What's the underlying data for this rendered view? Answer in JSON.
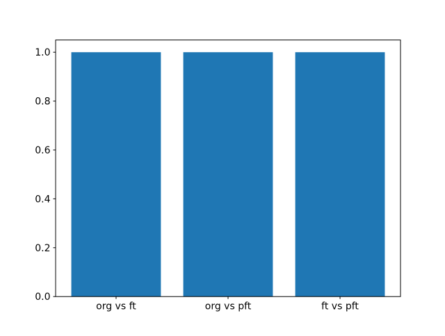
{
  "figure": {
    "background": "#ffffff"
  },
  "chart_data": {
    "type": "bar",
    "title": "",
    "xlabel": "",
    "ylabel": "",
    "categories": [
      "org vs ft",
      "org vs pft",
      "ft vs pft"
    ],
    "values": [
      1.0,
      1.0,
      1.0
    ],
    "ylim": [
      0,
      1.05
    ],
    "xlim": [
      -0.54,
      2.54
    ],
    "yticks": [
      0.0,
      0.2,
      0.4,
      0.6,
      0.8,
      1.0
    ],
    "ytick_labels": [
      "0.0",
      "0.2",
      "0.4",
      "0.6",
      "0.8",
      "1.0"
    ],
    "bar_width": 0.8,
    "bar_color": "#1f77b4",
    "axis_color": "#000000",
    "grid": false,
    "legend": null
  }
}
